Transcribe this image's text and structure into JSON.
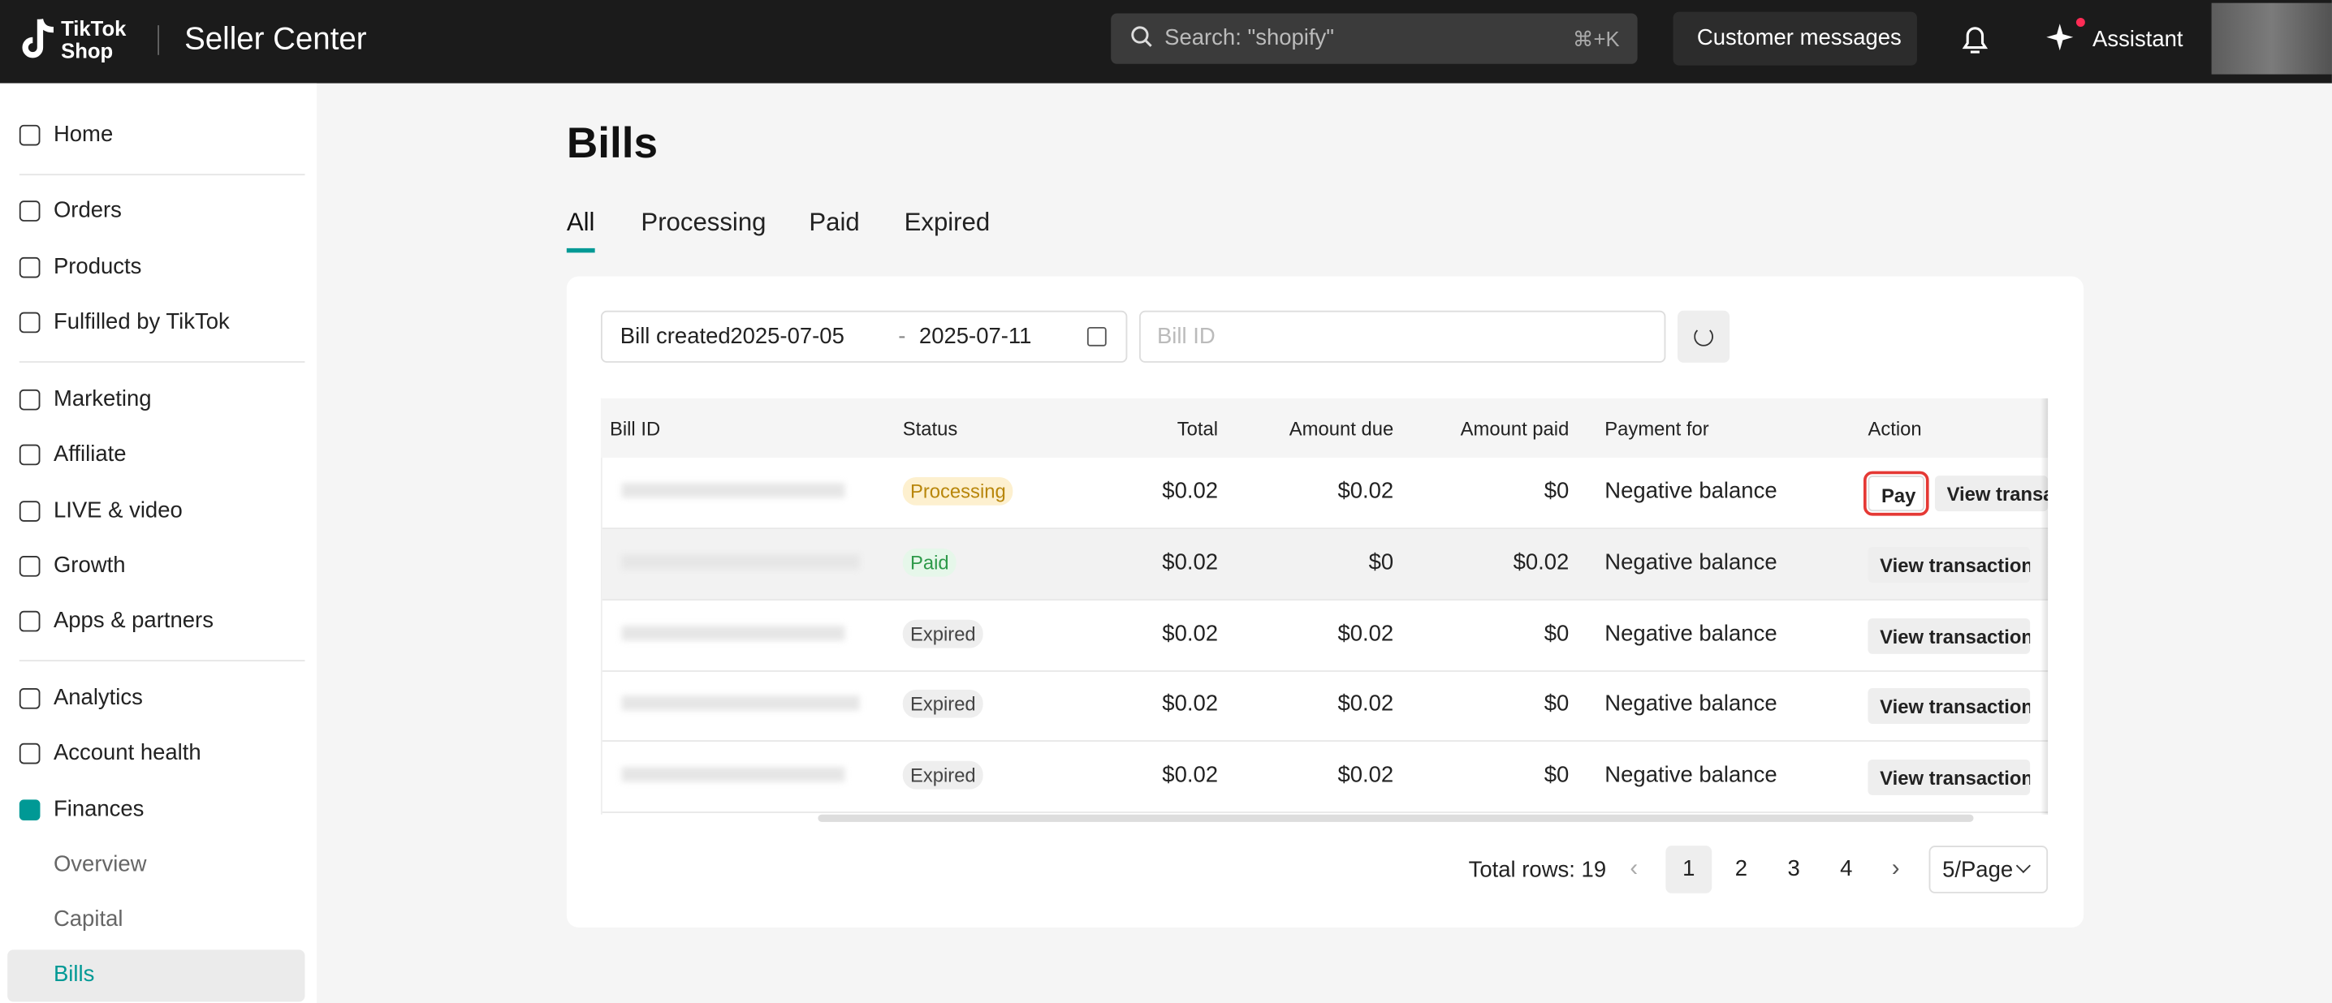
{
  "header": {
    "logo": "TikTok Shop",
    "app_name": "Seller Center",
    "search_placeholder": "Search: \"shopify\"",
    "search_shortcut": "⌘+K",
    "messages_button": "Customer messages",
    "assistant": "Assistant"
  },
  "sidebar": {
    "items": [
      "Home",
      "Orders",
      "Products",
      "Fulfilled by TikTok",
      "Marketing",
      "Affiliate",
      "LIVE & video",
      "Growth",
      "Apps & partners",
      "Analytics",
      "Account health",
      "Finances",
      "Overview",
      "Capital",
      "Bills"
    ]
  },
  "page": {
    "title": "Bills",
    "tabs": [
      "All",
      "Processing",
      "Paid",
      "Expired"
    ]
  },
  "filters": {
    "date_label": "Bill created",
    "start_date": "2025-07-05",
    "separator": "-",
    "end_date": "2025-07-11",
    "bill_id_placeholder": "Bill ID"
  },
  "table": {
    "columns": [
      "Bill ID",
      "Status",
      "Total",
      "Amount due",
      "Amount paid",
      "Payment for",
      "Action"
    ],
    "rows": [
      {
        "status": "Processing",
        "total": "$0.02",
        "amount_due": "$0.02",
        "amount_paid": "$0",
        "payment_for": "Negative balance",
        "actions": [
          "Pay",
          "View transaction"
        ]
      },
      {
        "status": "Paid",
        "total": "$0.02",
        "amount_due": "$0",
        "amount_paid": "$0.02",
        "payment_for": "Negative balance",
        "actions": [
          "View transaction"
        ]
      },
      {
        "status": "Expired",
        "total": "$0.02",
        "amount_due": "$0.02",
        "amount_paid": "$0",
        "payment_for": "Negative balance",
        "actions": [
          "View transaction"
        ]
      },
      {
        "status": "Expired",
        "total": "$0.02",
        "amount_due": "$0.02",
        "amount_paid": "$0",
        "payment_for": "Negative balance",
        "actions": [
          "View transaction"
        ]
      },
      {
        "status": "Expired",
        "total": "$0.02",
        "amount_due": "$0.02",
        "amount_paid": "$0",
        "payment_for": "Negative balance",
        "actions": [
          "View transaction"
        ]
      }
    ]
  },
  "pagination": {
    "total_rows": "Total rows: 19",
    "pages": [
      "1",
      "2",
      "3",
      "4"
    ],
    "page_size": "5/Page"
  }
}
